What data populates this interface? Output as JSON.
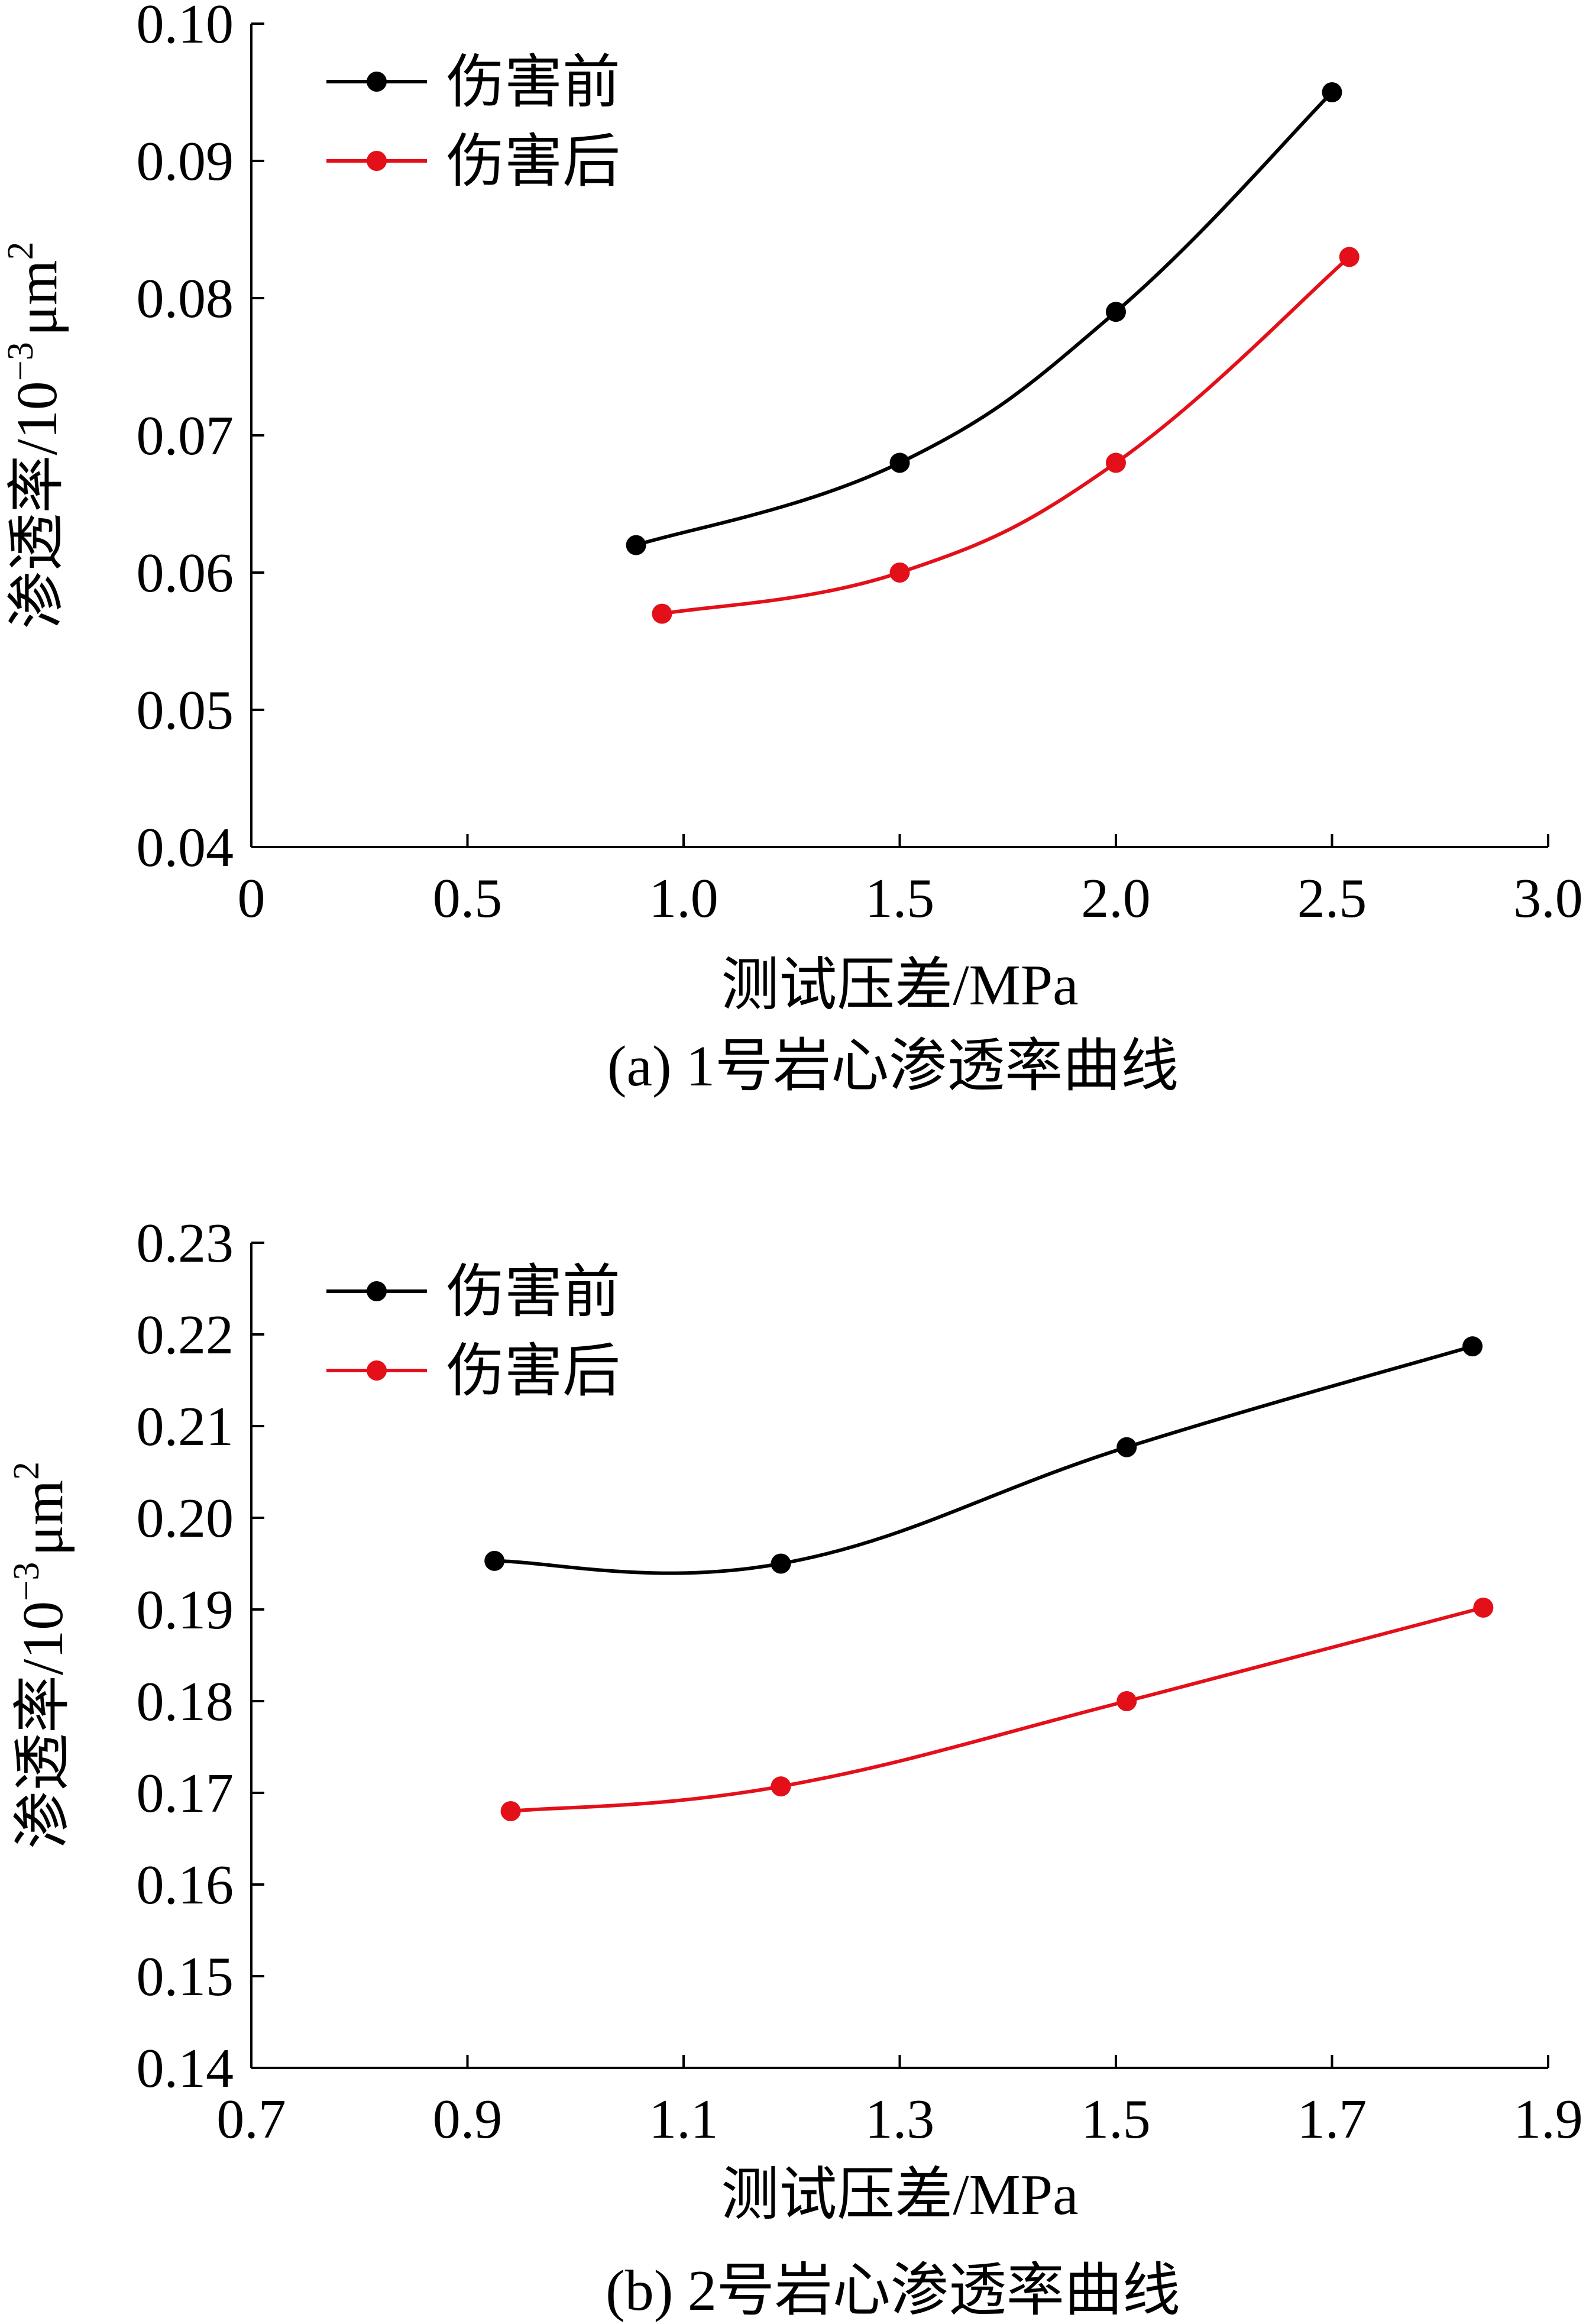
{
  "chart_data": [
    {
      "id": "a",
      "type": "line",
      "caption": "(a)  1号岩心渗透率曲线",
      "xlabel": "测试压差/MPa",
      "ylabel_main": "渗透率/10",
      "ylabel_exp": "−3",
      "ylabel_unit": "μm",
      "ylabel_unit_exp": "2",
      "xlim": [
        0,
        3.0
      ],
      "ylim": [
        0.04,
        0.1
      ],
      "xticks": [
        0,
        0.5,
        1.0,
        1.5,
        2.0,
        2.5,
        3.0
      ],
      "xtick_labels": [
        "0",
        "0.5",
        "1.0",
        "1.5",
        "2.0",
        "2.5",
        "3.0"
      ],
      "yticks": [
        0.04,
        0.05,
        0.06,
        0.07,
        0.08,
        0.09,
        0.1
      ],
      "ytick_labels": [
        "0.04",
        "0.05",
        "0.06",
        "0.07",
        "0.08",
        "0.09",
        "0.10"
      ],
      "legend_position": "top-left",
      "grid": false,
      "series": [
        {
          "name": "伤害前",
          "color": "#000000",
          "x": [
            0.89,
            1.5,
            2.0,
            2.5
          ],
          "y": [
            0.062,
            0.068,
            0.079,
            0.095
          ]
        },
        {
          "name": "伤害后",
          "color": "#e3101a",
          "x": [
            0.95,
            1.5,
            2.0,
            2.54
          ],
          "y": [
            0.057,
            0.06,
            0.068,
            0.083
          ]
        }
      ]
    },
    {
      "id": "b",
      "type": "line",
      "caption": "(b)  2号岩心渗透率曲线",
      "xlabel": "测试压差/MPa",
      "ylabel_main": "渗透率/10",
      "ylabel_exp": "−3",
      "ylabel_unit": "μm",
      "ylabel_unit_exp": "2",
      "xlim": [
        0.7,
        1.9
      ],
      "ylim": [
        0.14,
        0.23
      ],
      "xticks": [
        0.7,
        0.9,
        1.1,
        1.3,
        1.5,
        1.7,
        1.9
      ],
      "xtick_labels": [
        "0.7",
        "0.9",
        "1.1",
        "1.3",
        "1.5",
        "1.7",
        "1.9"
      ],
      "yticks": [
        0.14,
        0.15,
        0.16,
        0.17,
        0.18,
        0.19,
        0.2,
        0.21,
        0.22,
        0.23
      ],
      "ytick_labels": [
        "0.14",
        "0.15",
        "0.16",
        "0.17",
        "0.18",
        "0.19",
        "0.20",
        "0.21",
        "0.22",
        "0.23"
      ],
      "legend_position": "top-left",
      "grid": false,
      "series": [
        {
          "name": "伤害前",
          "color": "#000000",
          "x": [
            0.925,
            1.19,
            1.51,
            1.83
          ],
          "y": [
            0.1953,
            0.195,
            0.2077,
            0.2187
          ]
        },
        {
          "name": "伤害后",
          "color": "#e3101a",
          "x": [
            0.94,
            1.19,
            1.51,
            1.84
          ],
          "y": [
            0.168,
            0.1707,
            0.18,
            0.1902
          ]
        }
      ]
    }
  ]
}
